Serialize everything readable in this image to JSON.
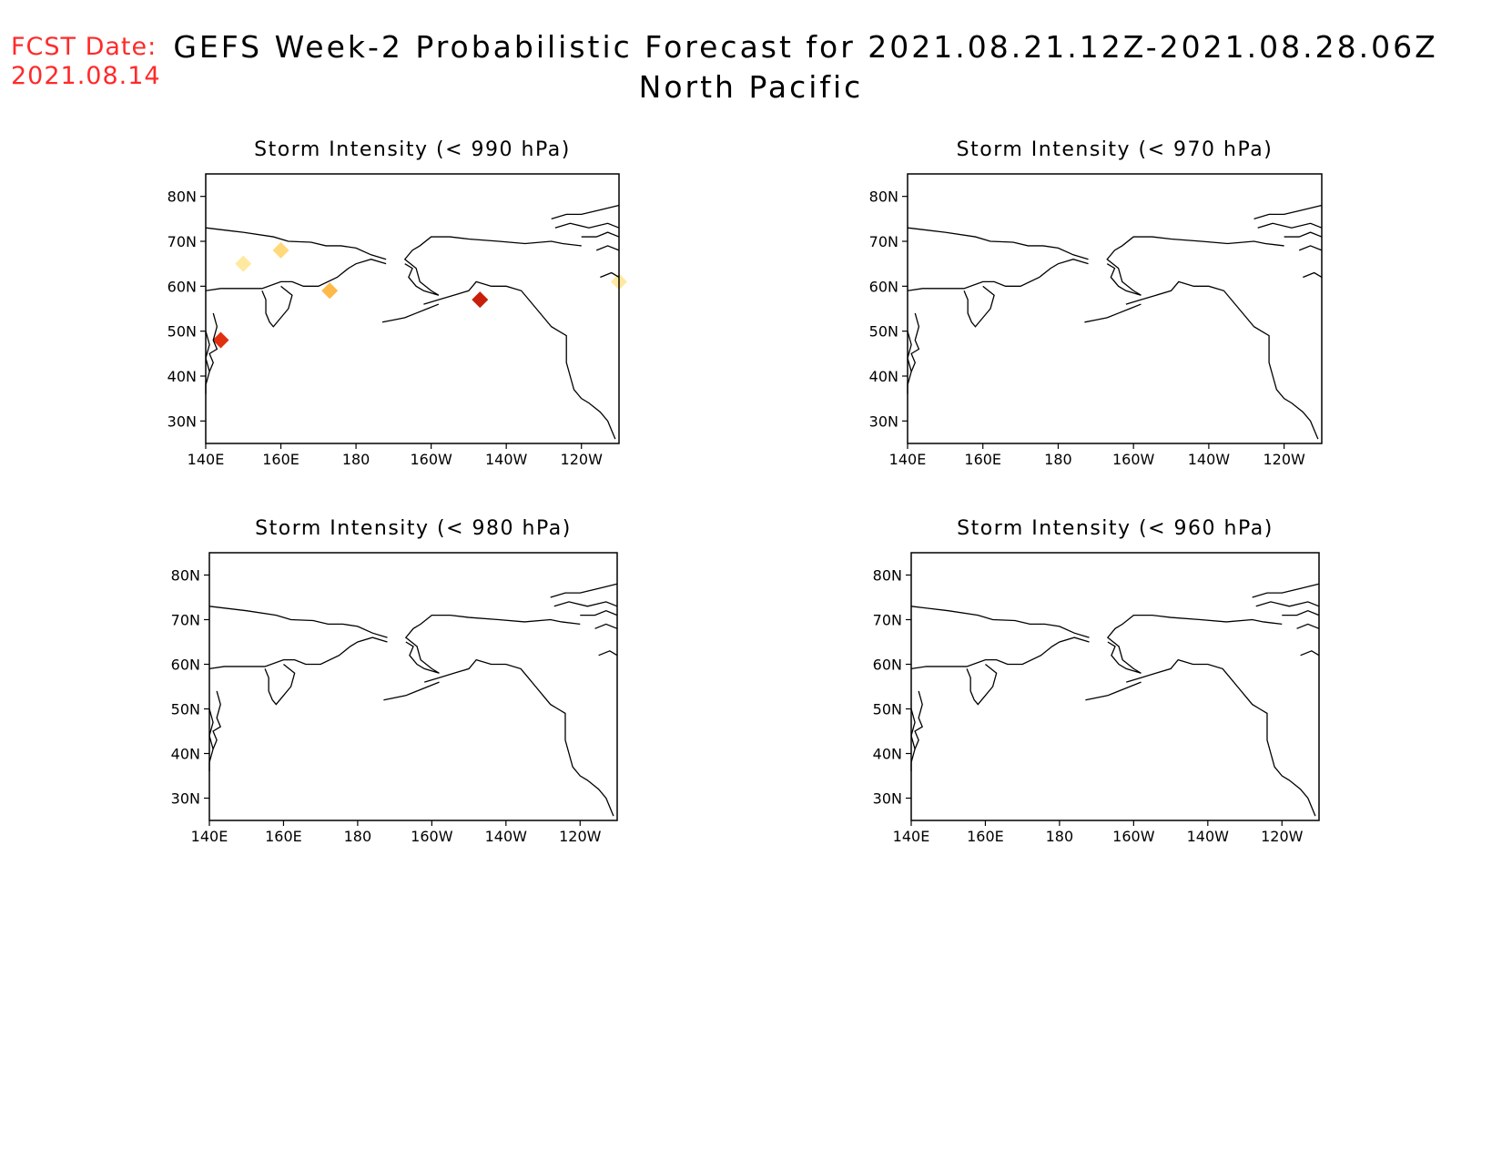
{
  "fcst": {
    "label": "FCST Date:",
    "date": "2021.08.14"
  },
  "title": {
    "main": "GEFS Week-2 Probabilistic Forecast for 2021.08.21.12Z-2021.08.28.06Z",
    "region": "North Pacific"
  },
  "axes": {
    "x_ticks": [
      "140E",
      "160E",
      "180",
      "160W",
      "140W",
      "120W"
    ],
    "y_ticks": [
      "80N",
      "70N",
      "60N",
      "50N",
      "40N",
      "30N"
    ]
  },
  "panels": [
    {
      "id": "p990",
      "title": "Storm Intensity (< 990 hPa)",
      "threshold_hPa": 990,
      "blobs": [
        {
          "lon": 150,
          "lat": 65,
          "color": "#ffe9a0"
        },
        {
          "lon": 160,
          "lat": 68,
          "color": "#ffd97a"
        },
        {
          "lon": 173,
          "lat": 59,
          "color": "#ffb84a"
        },
        {
          "lon": 144,
          "lat": 48,
          "color": "#e03010"
        },
        {
          "lon": -147,
          "lat": 57,
          "color": "#c81e0a"
        },
        {
          "lon": -110,
          "lat": 61,
          "color": "#ffe9a0"
        }
      ]
    },
    {
      "id": "p970",
      "title": "Storm Intensity (< 970 hPa)",
      "threshold_hPa": 970,
      "blobs": []
    },
    {
      "id": "p980",
      "title": "Storm Intensity (< 980 hPa)",
      "threshold_hPa": 980,
      "blobs": []
    },
    {
      "id": "p960",
      "title": "Storm Intensity (< 960 hPa)",
      "threshold_hPa": 960,
      "blobs": []
    }
  ],
  "colors": {
    "fcst_text": "#ff2a2a",
    "coast": "#000000"
  }
}
